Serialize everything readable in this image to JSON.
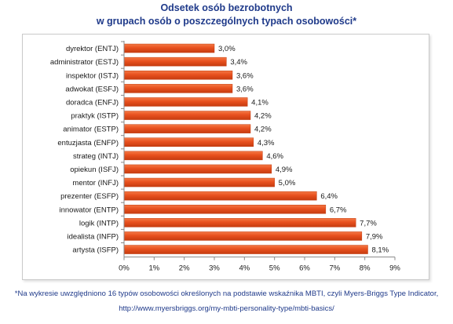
{
  "title_line1": "Odsetek osób bezrobotnych",
  "title_line2": "w grupach osób o poszczególnych typach osobowości*",
  "footnote_line1": "*Na wykresie uwzględniono 16 typów osobowości określonych na podstawie wskaźnika MBTI, czyli Myers-Briggs Type Indicator,",
  "footnote_line2": "http://www.myersbriggs.org/my-mbti-personality-type/mbti-basics/",
  "colors": {
    "bar": "#e8501e",
    "bar_dark": "#c23a0e",
    "title": "#1f3a8a",
    "axis": "#888888"
  },
  "chart_data": {
    "type": "bar",
    "orientation": "horizontal",
    "categories": [
      "dyrektor (ENTJ)",
      "administrator (ESTJ)",
      "inspektor (ISTJ)",
      "adwokat (ESFJ)",
      "doradca (ENFJ)",
      "praktyk (ISTP)",
      "animator (ESTP)",
      "entuzjasta (ENFP)",
      "strateg (INTJ)",
      "opiekun (ISFJ)",
      "mentor (INFJ)",
      "prezenter (ESFP)",
      "innowator (ENTP)",
      "logik (INTP)",
      "idealista (INFP)",
      "artysta (ISFP)"
    ],
    "values": [
      3.0,
      3.4,
      3.6,
      3.6,
      4.1,
      4.2,
      4.2,
      4.3,
      4.6,
      4.9,
      5.0,
      6.4,
      6.7,
      7.7,
      7.9,
      8.1
    ],
    "value_labels": [
      "3,0%",
      "3,4%",
      "3,6%",
      "3,6%",
      "4,1%",
      "4,2%",
      "4,2%",
      "4,3%",
      "4,6%",
      "4,9%",
      "5,0%",
      "6,4%",
      "6,7%",
      "7,7%",
      "7,9%",
      "8,1%"
    ],
    "xticks": [
      "0%",
      "1%",
      "2%",
      "3%",
      "4%",
      "5%",
      "6%",
      "7%",
      "8%",
      "9%"
    ],
    "xlim": [
      0,
      9
    ],
    "grid": false,
    "legend": "none"
  }
}
